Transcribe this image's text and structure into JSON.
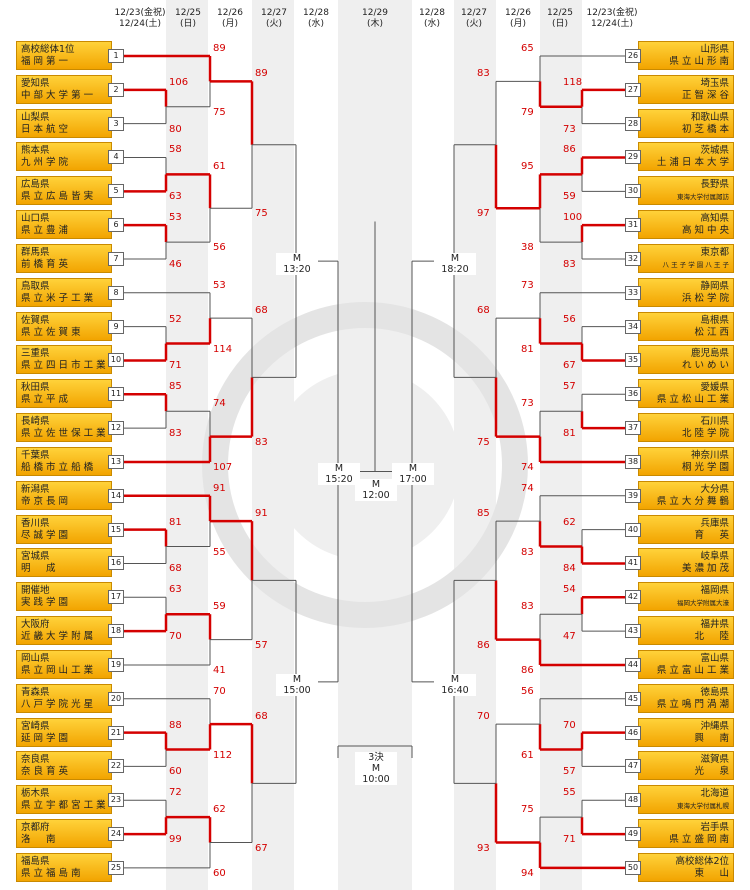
{
  "dates_left": [
    {
      "l1": "12/23(金祝)",
      "l2": "12/24(土)"
    },
    {
      "l1": "12/25",
      "l2": "(日)"
    },
    {
      "l1": "12/26",
      "l2": "(月)"
    },
    {
      "l1": "12/27",
      "l2": "(火)"
    },
    {
      "l1": "12/28",
      "l2": "(水)"
    }
  ],
  "date_center": {
    "l1": "12/29",
    "l2": "(木)"
  },
  "dates_right": [
    {
      "l1": "12/28",
      "l2": "(水)"
    },
    {
      "l1": "12/27",
      "l2": "(火)"
    },
    {
      "l1": "12/26",
      "l2": "(月)"
    },
    {
      "l1": "12/25",
      "l2": "(日)"
    },
    {
      "l1": "12/23(金祝)",
      "l2": "12/24(土)"
    }
  ],
  "teams_left": [
    {
      "n": "1",
      "a": "高校総体1位",
      "b": "福 岡 第 一"
    },
    {
      "n": "2",
      "a": "愛知県",
      "b": "中 部 大 学 第 一"
    },
    {
      "n": "3",
      "a": "山梨県",
      "b": "日 本 航 空"
    },
    {
      "n": "4",
      "a": "熊本県",
      "b": "九 州 学 院"
    },
    {
      "n": "5",
      "a": "広島県",
      "b": "県 立 広 島 皆 実"
    },
    {
      "n": "6",
      "a": "山口県",
      "b": "県 立 豊 浦"
    },
    {
      "n": "7",
      "a": "群馬県",
      "b": "前 橋 育 英"
    },
    {
      "n": "8",
      "a": "鳥取県",
      "b": "県 立 米 子 工 業"
    },
    {
      "n": "9",
      "a": "佐賀県",
      "b": "県 立 佐 賀 東"
    },
    {
      "n": "10",
      "a": "三重県",
      "b": "県 立 四 日 市 工 業"
    },
    {
      "n": "11",
      "a": "秋田県",
      "b": "県 立 平 成"
    },
    {
      "n": "12",
      "a": "長崎県",
      "b": "県 立 佐 世 保 工 業"
    },
    {
      "n": "13",
      "a": "千葉県",
      "b": "船 橋 市 立 船 橋"
    },
    {
      "n": "14",
      "a": "新潟県",
      "b": "帝 京 長 岡"
    },
    {
      "n": "15",
      "a": "香川県",
      "b": "尽 誠 学 園"
    },
    {
      "n": "16",
      "a": "宮城県",
      "b": "明 　 成"
    },
    {
      "n": "17",
      "a": "開催地",
      "b": "実 践 学 園"
    },
    {
      "n": "18",
      "a": "大阪府",
      "b": "近 畿 大 学 附 属"
    },
    {
      "n": "19",
      "a": "岡山県",
      "b": "県 立 岡 山 工 業"
    },
    {
      "n": "20",
      "a": "青森県",
      "b": "八 戸 学 院 光 星"
    },
    {
      "n": "21",
      "a": "宮崎県",
      "b": "延 岡 学 園"
    },
    {
      "n": "22",
      "a": "奈良県",
      "b": "奈 良 育 英"
    },
    {
      "n": "23",
      "a": "栃木県",
      "b": "県 立 宇 都 宮 工 業"
    },
    {
      "n": "24",
      "a": "京都府",
      "b": "洛 　 南"
    },
    {
      "n": "25",
      "a": "福島県",
      "b": "県 立 福 島 南"
    }
  ],
  "teams_right": [
    {
      "n": "26",
      "a": "山形県",
      "b": "県 立 山 形 南"
    },
    {
      "n": "27",
      "a": "埼玉県",
      "b": "正 智 深 谷"
    },
    {
      "n": "28",
      "a": "和歌山県",
      "b": "初 芝 橋 本"
    },
    {
      "n": "29",
      "a": "茨城県",
      "b": "土 浦 日 本 大 学"
    },
    {
      "n": "30",
      "a": "長野県",
      "b": "東海大学付属諏訪"
    },
    {
      "n": "31",
      "a": "高知県",
      "b": "高 知 中 央"
    },
    {
      "n": "32",
      "a": "東京都",
      "b": "八 王 子 学 園 八 王 子"
    },
    {
      "n": "33",
      "a": "静岡県",
      "b": "浜 松 学 院"
    },
    {
      "n": "34",
      "a": "島根県",
      "b": "松 江 西"
    },
    {
      "n": "35",
      "a": "鹿児島県",
      "b": "れ い め い"
    },
    {
      "n": "36",
      "a": "愛媛県",
      "b": "県 立 松 山 工 業"
    },
    {
      "n": "37",
      "a": "石川県",
      "b": "北 陸 学 院"
    },
    {
      "n": "38",
      "a": "神奈川県",
      "b": "桐 光 学 園"
    },
    {
      "n": "39",
      "a": "大分県",
      "b": "県 立 大 分 舞 鶴"
    },
    {
      "n": "40",
      "a": "兵庫県",
      "b": "育 　 英"
    },
    {
      "n": "41",
      "a": "岐阜県",
      "b": "美 濃 加 茂"
    },
    {
      "n": "42",
      "a": "福岡県",
      "b": "福岡大学附属大濠"
    },
    {
      "n": "43",
      "a": "福井県",
      "b": "北 　 陸"
    },
    {
      "n": "44",
      "a": "富山県",
      "b": "県 立 富 山 工 業"
    },
    {
      "n": "45",
      "a": "徳島県",
      "b": "県 立 鳴 門 渦 潮"
    },
    {
      "n": "46",
      "a": "沖縄県",
      "b": "興 　 南"
    },
    {
      "n": "47",
      "a": "滋賀県",
      "b": "光 　 泉"
    },
    {
      "n": "48",
      "a": "北海道",
      "b": "東海大学付属札幌"
    },
    {
      "n": "49",
      "a": "岩手県",
      "b": "県 立 盛 岡 南"
    },
    {
      "n": "50",
      "a": "高校総体2位",
      "b": "東 　 山"
    }
  ],
  "scores_left": {
    "r1": [
      [
        "106",
        "80"
      ],
      [
        "58",
        "63"
      ],
      [
        "53",
        "46"
      ],
      [
        "52",
        "71"
      ],
      [
        "85",
        "83"
      ],
      [
        "81",
        "68"
      ],
      [
        "63",
        "70"
      ],
      [
        "88",
        "60"
      ],
      [
        "72",
        "99"
      ]
    ],
    "r2": [
      [
        "89",
        "75"
      ],
      [
        "61",
        "56"
      ],
      [
        "53",
        "114"
      ],
      [
        "74",
        "107"
      ],
      [
        "91",
        "55"
      ],
      [
        "59",
        "41"
      ],
      [
        "70",
        "112"
      ],
      [
        "62",
        "60"
      ]
    ],
    "r3": [
      [
        "89",
        "75"
      ],
      [
        "68",
        "83"
      ],
      [
        "91",
        "57"
      ],
      [
        "68",
        "67"
      ]
    ]
  },
  "scores_right": {
    "r1": [
      [
        "118",
        "73"
      ],
      [
        "86",
        "59"
      ],
      [
        "100",
        "83"
      ],
      [
        "56",
        "67"
      ],
      [
        "57",
        "81"
      ],
      [
        "62",
        "84"
      ],
      [
        "54",
        "47"
      ],
      [
        "70",
        "57"
      ],
      [
        "55",
        "71"
      ]
    ],
    "r2": [
      [
        "65",
        "79"
      ],
      [
        "95",
        "38"
      ],
      [
        "73",
        "81"
      ],
      [
        "73",
        "74"
      ],
      [
        "74",
        "83"
      ],
      [
        "83",
        "86"
      ],
      [
        "56",
        "61"
      ],
      [
        "75",
        "94"
      ]
    ],
    "r3": [
      [
        "83",
        "97"
      ],
      [
        "68",
        "75"
      ],
      [
        "85",
        "86"
      ],
      [
        "70",
        "93"
      ]
    ]
  },
  "times": {
    "left_top": "M\n13:20",
    "left_bot": "M\n15:00",
    "left_semi": "M\n15:20",
    "right_top": "M\n18:20",
    "right_bot": "M\n16:40",
    "right_semi": "M\n17:00",
    "final": "M\n12:00",
    "third": "3決\nM\n10:00"
  },
  "colors": {
    "win": "#d40000",
    "line": "#555555",
    "team_bg": "#f6b800"
  }
}
